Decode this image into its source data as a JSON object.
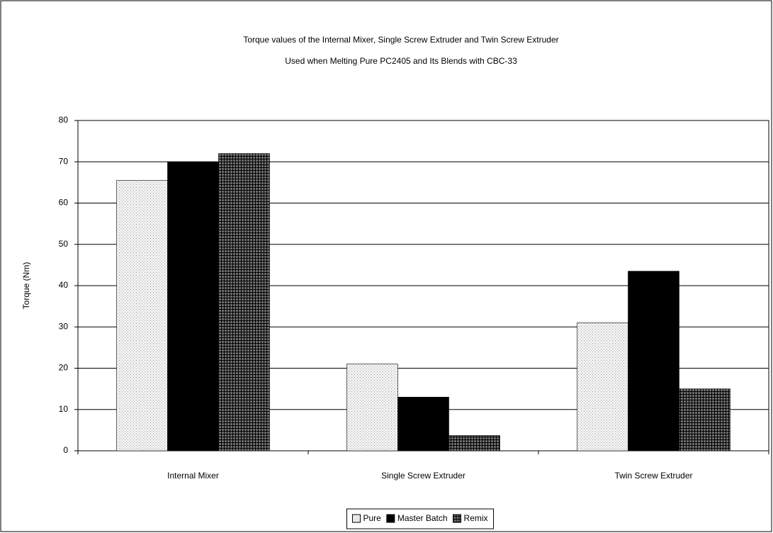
{
  "chart_data": {
    "type": "bar",
    "title": "Torque values of the Internal Mixer, Single Screw Extruder and Twin Screw Extruder",
    "subtitle": "Used when Melting Pure PC2405 and Its Blends with CBC-33",
    "y_label": "Torque (Nm)",
    "categories": [
      "Internal Mixer",
      "Single Screw Extruder",
      "Twin Screw Extruder"
    ],
    "series": [
      {
        "name": "Pure",
        "color": "#f2f2f2",
        "values": [
          65.5,
          21,
          31
        ]
      },
      {
        "name": "Master Batch",
        "color": "#000000",
        "values": [
          70,
          13,
          43.5
        ]
      },
      {
        "name": "Remix",
        "color": "#6e6e6e",
        "values": [
          72,
          3.7,
          15
        ]
      }
    ],
    "ylim": [
      0,
      80
    ],
    "yticks": [
      0,
      10,
      20,
      30,
      40,
      50,
      60,
      70,
      80
    ],
    "grid": true,
    "legend": "bottom"
  }
}
